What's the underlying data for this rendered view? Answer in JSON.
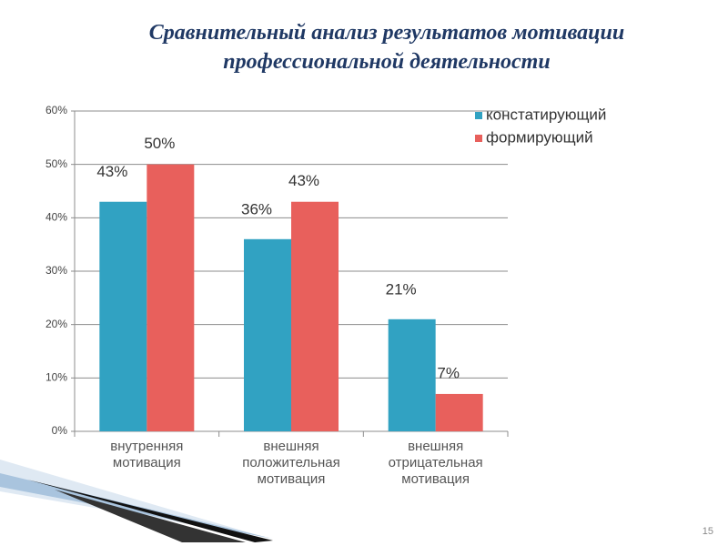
{
  "chart_data": {
    "type": "bar",
    "title": "Сравнительный анализ результатов мотивации профессиональной деятельности",
    "categories": [
      "внутренняя мотивация",
      "внешняя положительная мотивация",
      "внешняя отрицательная мотивация"
    ],
    "series": [
      {
        "name": "констатирующий",
        "color": "#31a2c2",
        "values": [
          43,
          36,
          21
        ],
        "value_labels": [
          "43%",
          "36%",
          "21%"
        ]
      },
      {
        "name": "формирующий",
        "color": "#e8605c",
        "values": [
          50,
          43,
          7
        ],
        "value_labels": [
          "50%",
          "43%",
          "7%"
        ]
      }
    ],
    "ylim": [
      0,
      60
    ],
    "yticks": [
      {
        "value": 0,
        "label": "0%"
      },
      {
        "value": 10,
        "label": "10%"
      },
      {
        "value": 20,
        "label": "20%"
      },
      {
        "value": 30,
        "label": "30%"
      },
      {
        "value": 40,
        "label": "40%"
      },
      {
        "value": 50,
        "label": "50%"
      },
      {
        "value": 60,
        "label": "60%"
      }
    ],
    "grid": true,
    "legend": "top-right"
  },
  "slide_number": "15"
}
